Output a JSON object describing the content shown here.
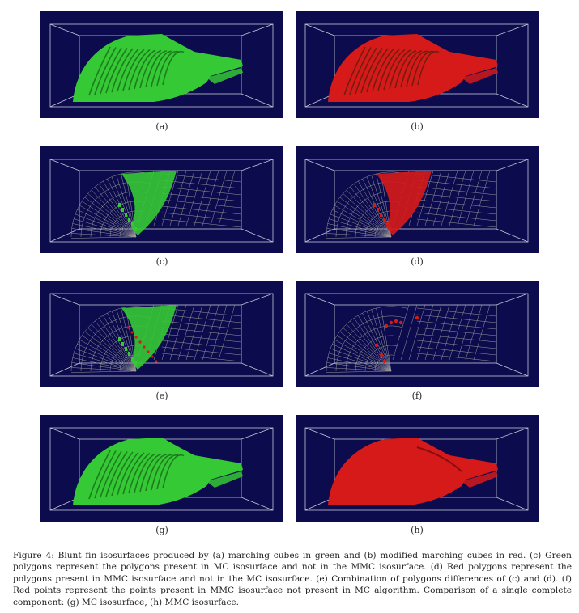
{
  "figure": {
    "panels": [
      {
        "label": "(a)",
        "mode": "solid",
        "color": "#35c935"
      },
      {
        "label": "(b)",
        "mode": "solid",
        "color": "#d61a1a"
      },
      {
        "label": "(c)",
        "mode": "wire",
        "color": "#35c935"
      },
      {
        "label": "(d)",
        "mode": "wire",
        "color": "#d61a1a"
      },
      {
        "label": "(e)",
        "mode": "wire-combo",
        "color": "#35c935"
      },
      {
        "label": "(f)",
        "mode": "wire-points",
        "color": "#d61a1a"
      },
      {
        "label": "(g)",
        "mode": "solid",
        "color": "#35c935"
      },
      {
        "label": "(h)",
        "mode": "solid-smooth",
        "color": "#d61a1a"
      }
    ],
    "caption": "Figure 4: Blunt fin isosurfaces produced by (a) marching cubes in green and (b) modified marching cubes in red. (c) Green polygons represent the polygons present in MC isosurface and not in the MMC isosurface. (d) Red polygons represent the polygons present in MMC isosurface and not in the MC isosurface. (e) Combination of polygons differences of (c) and (d). (f) Red points represent the points present in MMC isosurface not present in MC algorithm. Comparison of a single complete component: (g) MC isosurface, (h) MMC isosurface."
  },
  "colors": {
    "panel_background": "#0b0b4d",
    "box_lines": "#c8c8d8",
    "wire": "#9a9a9a"
  }
}
